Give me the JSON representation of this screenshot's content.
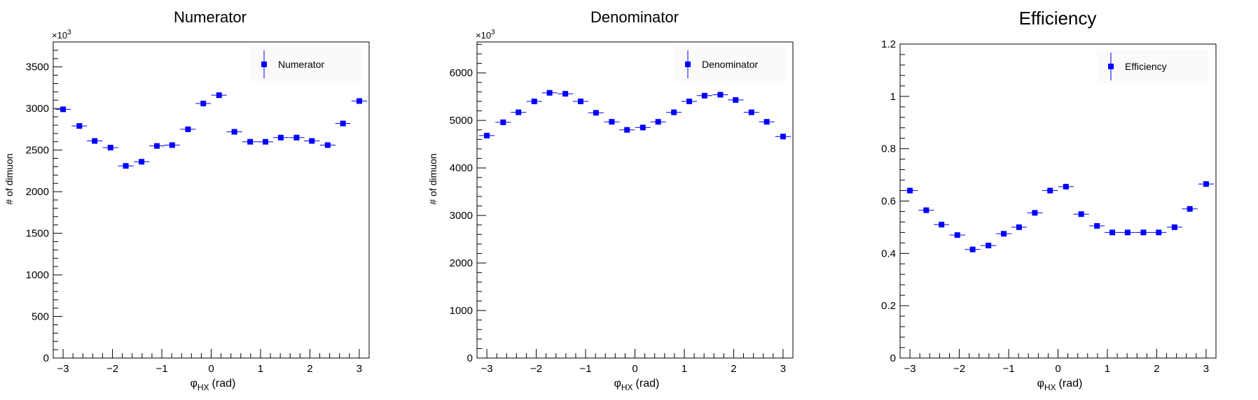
{
  "colors": {
    "marker": "#0000ff",
    "axis": "#000000",
    "legend_fill": "#f7f7f7"
  },
  "chart_data": [
    {
      "type": "scatter",
      "title": "Numerator",
      "xlabel_main": "φ",
      "xlabel_sub": "HX",
      "xlabel_unit": "(rad)",
      "ylabel": "# of dimuon",
      "y_exponent_base": "×10",
      "y_exponent_power": "3",
      "xlim": [
        -3.2,
        3.2
      ],
      "ylim": [
        0,
        3800
      ],
      "xticks": [
        "−3",
        "−2",
        "−1",
        "0",
        "1",
        "2",
        "3"
      ],
      "yticks": [
        "0",
        "500",
        "1000",
        "1500",
        "2000",
        "2500",
        "3000",
        "3500"
      ],
      "legend": {
        "label": "Numerator",
        "position": "top-right"
      },
      "series": [
        {
          "name": "Numerator",
          "x": [
            -3.0,
            -2.67,
            -2.36,
            -2.04,
            -1.73,
            -1.41,
            -1.1,
            -0.79,
            -0.47,
            -0.16,
            0.16,
            0.47,
            0.79,
            1.1,
            1.41,
            1.73,
            2.04,
            2.36,
            2.67,
            3.0
          ],
          "y": [
            2990,
            2790,
            2610,
            2530,
            2310,
            2360,
            2550,
            2560,
            2750,
            3060,
            3160,
            2720,
            2600,
            2600,
            2650,
            2650,
            2610,
            2560,
            2820,
            3090
          ]
        }
      ]
    },
    {
      "type": "scatter",
      "title": "Denominator",
      "xlabel_main": "φ",
      "xlabel_sub": "HX",
      "xlabel_unit": "(rad)",
      "ylabel": "# of dimuon",
      "y_exponent_base": "×10",
      "y_exponent_power": "3",
      "xlim": [
        -3.2,
        3.2
      ],
      "ylim": [
        0,
        6650
      ],
      "xticks": [
        "−3",
        "−2",
        "−1",
        "0",
        "1",
        "2",
        "3"
      ],
      "yticks": [
        "0",
        "1000",
        "2000",
        "3000",
        "4000",
        "5000",
        "6000"
      ],
      "legend": {
        "label": "Denominator",
        "position": "top-right"
      },
      "series": [
        {
          "name": "Denominator",
          "x": [
            -3.0,
            -2.67,
            -2.36,
            -2.04,
            -1.73,
            -1.41,
            -1.1,
            -0.79,
            -0.47,
            -0.16,
            0.16,
            0.47,
            0.79,
            1.1,
            1.41,
            1.73,
            2.04,
            2.36,
            2.67,
            3.0
          ],
          "y": [
            4680,
            4960,
            5170,
            5400,
            5580,
            5560,
            5400,
            5160,
            4970,
            4800,
            4850,
            4970,
            5170,
            5400,
            5520,
            5540,
            5430,
            5170,
            4970,
            4660
          ]
        }
      ]
    },
    {
      "type": "scatter",
      "title": "Efficiency",
      "xlabel_main": "φ",
      "xlabel_sub": "HX",
      "xlabel_unit": "(rad)",
      "ylabel": "",
      "y_exponent_base": "",
      "y_exponent_power": "",
      "xlim": [
        -3.2,
        3.2
      ],
      "ylim": [
        0,
        1.2
      ],
      "xticks": [
        "−3",
        "−2",
        "−1",
        "0",
        "1",
        "2",
        "3"
      ],
      "yticks": [
        "0",
        "0.2",
        "0.4",
        "0.6",
        "0.8",
        "1",
        "1.2"
      ],
      "legend": {
        "label": "Efficiency",
        "position": "top-right"
      },
      "series": [
        {
          "name": "Efficiency",
          "x": [
            -3.0,
            -2.67,
            -2.36,
            -2.04,
            -1.73,
            -1.41,
            -1.1,
            -0.79,
            -0.47,
            -0.16,
            0.16,
            0.47,
            0.79,
            1.1,
            1.41,
            1.73,
            2.04,
            2.36,
            2.67,
            3.0
          ],
          "y": [
            0.64,
            0.565,
            0.51,
            0.47,
            0.415,
            0.43,
            0.475,
            0.5,
            0.555,
            0.64,
            0.655,
            0.55,
            0.505,
            0.48,
            0.48,
            0.48,
            0.48,
            0.5,
            0.57,
            0.665
          ]
        }
      ]
    }
  ]
}
